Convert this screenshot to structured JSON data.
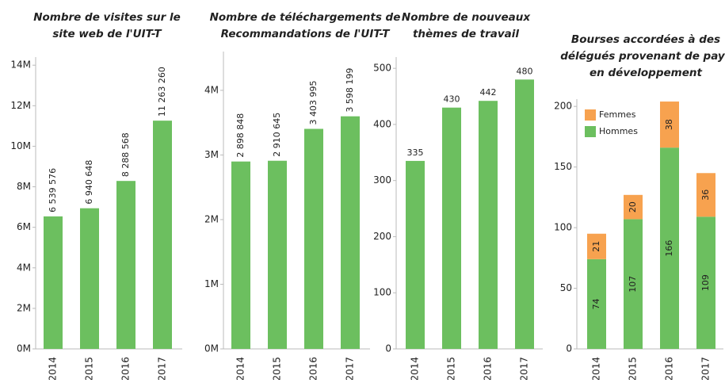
{
  "chart_data": [
    {
      "type": "bar",
      "title": [
        "Nombre de visites sur le",
        "site web de l'UIT-T"
      ],
      "categories": [
        "2014",
        "2015",
        "2016",
        "2017"
      ],
      "values": [
        6539576,
        6940648,
        8288568,
        11263260
      ],
      "value_labels": [
        "6 539 576",
        "6 940 648",
        "8 288 568",
        "11 263 260"
      ],
      "color": "#6cbf5f",
      "label_rotated": true,
      "ylim": [
        0,
        14400000
      ],
      "yticks": [
        {
          "value": 0,
          "label": "0M"
        },
        {
          "value": 2000000,
          "label": "2M"
        },
        {
          "value": 4000000,
          "label": "4M"
        },
        {
          "value": 6000000,
          "label": "6M"
        },
        {
          "value": 8000000,
          "label": "8M"
        },
        {
          "value": 10000000,
          "label": "10M"
        },
        {
          "value": 12000000,
          "label": "12M"
        },
        {
          "value": 14000000,
          "label": "14M"
        }
      ]
    },
    {
      "type": "bar",
      "title": [
        "Nombre de téléchargements de",
        "Recommandations de l'UIT-T"
      ],
      "categories": [
        "2014",
        "2015",
        "2016",
        "2017"
      ],
      "values": [
        2898848,
        2910645,
        3403995,
        3598199
      ],
      "value_labels": [
        "2 898 848",
        "2 910 645",
        "3 403 995",
        "3 598 199"
      ],
      "color": "#6cbf5f",
      "label_rotated": true,
      "ylim": [
        0,
        4600000
      ],
      "yticks": [
        {
          "value": 0,
          "label": "0M"
        },
        {
          "value": 1000000,
          "label": "1M"
        },
        {
          "value": 2000000,
          "label": "2M"
        },
        {
          "value": 3000000,
          "label": "3M"
        },
        {
          "value": 4000000,
          "label": "4M"
        }
      ]
    },
    {
      "type": "bar",
      "title": [
        "Nombre de nouveaux",
        "thèmes de travail"
      ],
      "categories": [
        "2014",
        "2015",
        "2016",
        "2017"
      ],
      "values": [
        335,
        430,
        442,
        480
      ],
      "color": "#6cbf5f",
      "label_rotated": false,
      "ylim": [
        0,
        520
      ],
      "yticks": [
        0,
        100,
        200,
        300,
        400,
        500
      ]
    },
    {
      "type": "stacked_bar",
      "title": [
        "Bourses accordées à des",
        "délégués provenant de pays",
        "en développement"
      ],
      "categories": [
        "2014",
        "2015",
        "2016",
        "2017"
      ],
      "series": [
        {
          "name": "Hommes",
          "color": "#6cbf5f",
          "values": [
            74,
            107,
            166,
            109
          ]
        },
        {
          "name": "Femmes",
          "color": "#f7a24f",
          "values": [
            21,
            20,
            38,
            36
          ]
        }
      ],
      "legend": "top-left",
      "ylim": [
        0,
        206
      ],
      "yticks": [
        0,
        50,
        100,
        150,
        200
      ]
    }
  ]
}
